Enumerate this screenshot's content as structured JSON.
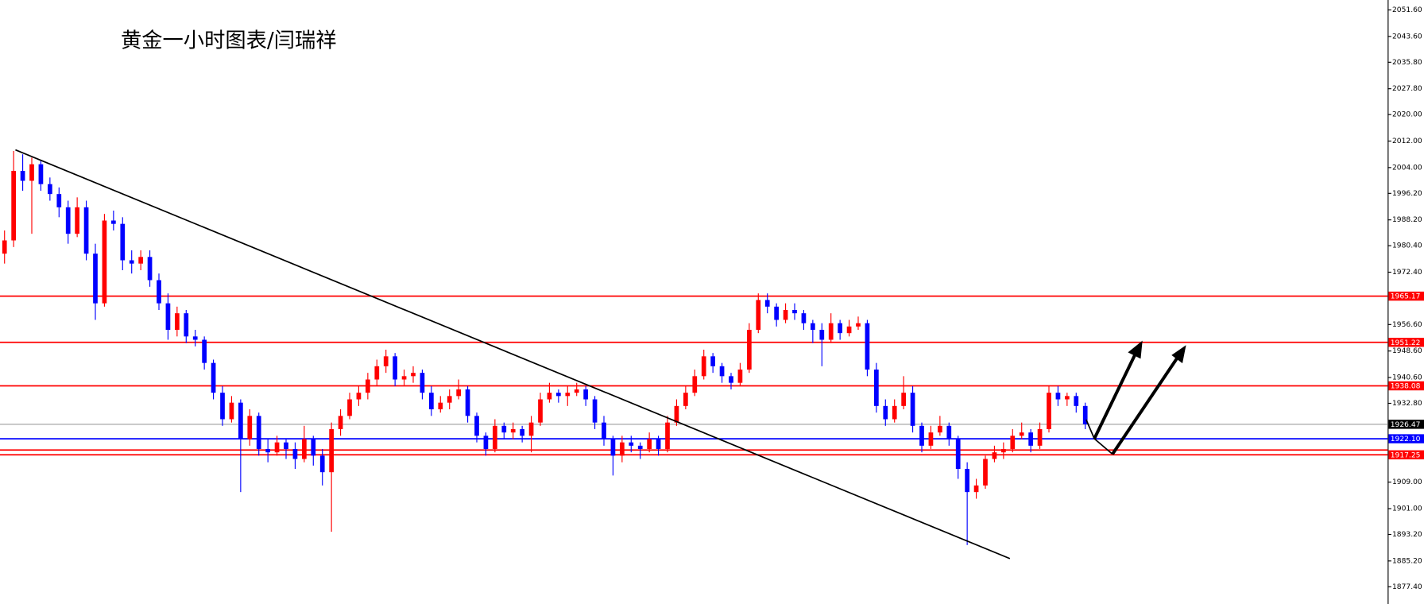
{
  "chart_data": {
    "type": "candlestick",
    "title": "黄金一小时图表/闫瑞祥",
    "ylim": [
      1872.2,
      2054.6
    ],
    "yticks": [
      {
        "value": 2051.6,
        "label": "2051.60"
      },
      {
        "value": 2043.6,
        "label": "2043.60"
      },
      {
        "value": 2035.8,
        "label": "2035.80"
      },
      {
        "value": 2027.8,
        "label": "2027.80"
      },
      {
        "value": 2020,
        "label": "2020.00"
      },
      {
        "value": 2012,
        "label": "2012.00"
      },
      {
        "value": 2004,
        "label": "2004.00"
      },
      {
        "value": 1996.2,
        "label": "1996.20"
      },
      {
        "value": 1988.2,
        "label": "1988.20"
      },
      {
        "value": 1980.4,
        "label": "1980.40"
      },
      {
        "value": 1972.4,
        "label": "1972.40"
      },
      {
        "value": 1956.6,
        "label": "1956.60"
      },
      {
        "value": 1948.6,
        "label": "1948.60"
      },
      {
        "value": 1940.6,
        "label": "1940.60"
      },
      {
        "value": 1932.8,
        "label": "1932.80"
      },
      {
        "value": 1909,
        "label": "1909.00"
      },
      {
        "value": 1901,
        "label": "1901.00"
      },
      {
        "value": 1893.2,
        "label": "1893.20"
      },
      {
        "value": 1885.2,
        "label": "1885.20"
      },
      {
        "value": 1877.4,
        "label": "1877.40"
      }
    ],
    "up_color": "#ff0000",
    "down_color": "#0000ff",
    "levels": [
      {
        "value": 1965.17,
        "color": "#ff0000"
      },
      {
        "value": 1951.22,
        "color": "#ff0000"
      },
      {
        "value": 1938.08,
        "color": "#ff0000"
      },
      {
        "value": 1926.47,
        "color": "#c0c0c0",
        "tag_color": "#000000"
      },
      {
        "value": 1922.1,
        "label": "1922.10",
        "color": "#0000ff"
      },
      {
        "value": 1918.7,
        "color": "#ff0000",
        "tagged": false
      },
      {
        "value": 1917.25,
        "color": "#ff0000"
      }
    ],
    "ohlc": [
      [
        1978,
        1985,
        1975,
        1982
      ],
      [
        1982,
        2009,
        1980,
        2003
      ],
      [
        2003,
        2008,
        1997,
        2000
      ],
      [
        2000,
        2007,
        1984,
        2005
      ],
      [
        2005,
        2006,
        1997,
        1999
      ],
      [
        1999,
        2001,
        1994,
        1996
      ],
      [
        1996,
        1998,
        1989,
        1992
      ],
      [
        1992,
        1994,
        1981,
        1984
      ],
      [
        1984,
        1995,
        1983,
        1992
      ],
      [
        1992,
        1994,
        1976,
        1978
      ],
      [
        1978,
        1981,
        1958,
        1963
      ],
      [
        1963,
        1990,
        1962,
        1988
      ],
      [
        1988,
        1991,
        1985,
        1987
      ],
      [
        1987,
        1989,
        1973,
        1976
      ],
      [
        1976,
        1979,
        1972,
        1975
      ],
      [
        1975,
        1979,
        1973,
        1977
      ],
      [
        1977,
        1979,
        1968,
        1970
      ],
      [
        1970,
        1972,
        1961,
        1963
      ],
      [
        1963,
        1966,
        1952,
        1955
      ],
      [
        1955,
        1962,
        1953,
        1960
      ],
      [
        1960,
        1961,
        1951,
        1953
      ],
      [
        1953,
        1955,
        1950,
        1952
      ],
      [
        1952,
        1953,
        1943,
        1945
      ],
      [
        1945,
        1946,
        1934,
        1936
      ],
      [
        1936,
        1938,
        1926,
        1928
      ],
      [
        1928,
        1935,
        1927,
        1933
      ],
      [
        1933,
        1934,
        1906,
        1922
      ],
      [
        1922,
        1931,
        1920,
        1929
      ],
      [
        1929,
        1930,
        1917,
        1919
      ],
      [
        1919,
        1922,
        1915,
        1918
      ],
      [
        1918,
        1923,
        1917,
        1921
      ],
      [
        1921,
        1922,
        1916,
        1919
      ],
      [
        1919,
        1921,
        1913,
        1916
      ],
      [
        1916,
        1926,
        1915,
        1922
      ],
      [
        1922,
        1923,
        1914,
        1917
      ],
      [
        1917,
        1919,
        1908,
        1912
      ],
      [
        1912,
        1927,
        1894,
        1925
      ],
      [
        1925,
        1931,
        1923,
        1929
      ],
      [
        1929,
        1936,
        1928,
        1934
      ],
      [
        1934,
        1938,
        1932,
        1936
      ],
      [
        1936,
        1942,
        1934,
        1940
      ],
      [
        1940,
        1946,
        1938,
        1944
      ],
      [
        1944,
        1949,
        1942,
        1947
      ],
      [
        1947,
        1948,
        1938,
        1940
      ],
      [
        1940,
        1943,
        1938,
        1941
      ],
      [
        1941,
        1944,
        1939,
        1942
      ],
      [
        1942,
        1943,
        1934,
        1936
      ],
      [
        1936,
        1938,
        1929,
        1931
      ],
      [
        1931,
        1935,
        1930,
        1933
      ],
      [
        1933,
        1937,
        1931,
        1935
      ],
      [
        1935,
        1940,
        1934,
        1937
      ],
      [
        1937,
        1938,
        1927,
        1929
      ],
      [
        1929,
        1930,
        1921,
        1923
      ],
      [
        1923,
        1924,
        1917,
        1919
      ],
      [
        1919,
        1928,
        1918,
        1926
      ],
      [
        1926,
        1927,
        1922,
        1924
      ],
      [
        1924,
        1927,
        1922,
        1925
      ],
      [
        1925,
        1926,
        1921,
        1923
      ],
      [
        1923,
        1929,
        1918,
        1927
      ],
      [
        1927,
        1936,
        1926,
        1934
      ],
      [
        1934,
        1939,
        1933,
        1936
      ],
      [
        1936,
        1937,
        1933,
        1935
      ],
      [
        1935,
        1938,
        1932,
        1936
      ],
      [
        1936,
        1939,
        1935,
        1937
      ],
      [
        1937,
        1938,
        1932,
        1934
      ],
      [
        1934,
        1935,
        1925,
        1927
      ],
      [
        1927,
        1929,
        1920,
        1922
      ],
      [
        1922,
        1923,
        1911,
        1917
      ],
      [
        1917,
        1923,
        1915,
        1921
      ],
      [
        1921,
        1923,
        1918,
        1920
      ],
      [
        1920,
        1921,
        1916,
        1919
      ],
      [
        1919,
        1924,
        1918,
        1922
      ],
      [
        1922,
        1923,
        1917,
        1919
      ],
      [
        1919,
        1929,
        1918,
        1927
      ],
      [
        1927,
        1934,
        1926,
        1932
      ],
      [
        1932,
        1938,
        1931,
        1936
      ],
      [
        1936,
        1943,
        1935,
        1941
      ],
      [
        1941,
        1949,
        1940,
        1947
      ],
      [
        1947,
        1948,
        1942,
        1944
      ],
      [
        1944,
        1945,
        1939,
        1941
      ],
      [
        1941,
        1942,
        1937,
        1939
      ],
      [
        1939,
        1945,
        1938,
        1943
      ],
      [
        1943,
        1957,
        1942,
        1955
      ],
      [
        1955,
        1966,
        1954,
        1964
      ],
      [
        1964,
        1966,
        1960,
        1962
      ],
      [
        1962,
        1963,
        1956,
        1958
      ],
      [
        1958,
        1963,
        1957,
        1961
      ],
      [
        1961,
        1963,
        1958,
        1960
      ],
      [
        1960,
        1961,
        1955,
        1957
      ],
      [
        1957,
        1958,
        1951,
        1955
      ],
      [
        1955,
        1957,
        1944,
        1952
      ],
      [
        1952,
        1960,
        1951,
        1957
      ],
      [
        1957,
        1958,
        1952,
        1954
      ],
      [
        1954,
        1958,
        1953,
        1956
      ],
      [
        1956,
        1959,
        1955,
        1957
      ],
      [
        1957,
        1958,
        1941,
        1943
      ],
      [
        1943,
        1945,
        1930,
        1932
      ],
      [
        1932,
        1934,
        1926,
        1928
      ],
      [
        1928,
        1934,
        1927,
        1932
      ],
      [
        1932,
        1941,
        1931,
        1936
      ],
      [
        1936,
        1938,
        1924,
        1926
      ],
      [
        1926,
        1927,
        1918,
        1920
      ],
      [
        1920,
        1926,
        1919,
        1924
      ],
      [
        1924,
        1929,
        1923,
        1926
      ],
      [
        1926,
        1927,
        1920,
        1922
      ],
      [
        1922,
        1923,
        1910,
        1913
      ],
      [
        1913,
        1915,
        1890,
        1906
      ],
      [
        1906,
        1910,
        1904,
        1908
      ],
      [
        1908,
        1917,
        1907,
        1916
      ],
      [
        1916,
        1920,
        1915,
        1918
      ],
      [
        1918,
        1921,
        1916,
        1919
      ],
      [
        1919,
        1925,
        1918,
        1923
      ],
      [
        1923,
        1927,
        1922,
        1924
      ],
      [
        1924,
        1925,
        1918,
        1920
      ],
      [
        1920,
        1927,
        1919,
        1925
      ],
      [
        1925,
        1938,
        1924,
        1936
      ],
      [
        1936,
        1938,
        1932,
        1934
      ],
      [
        1934,
        1936,
        1932,
        1935
      ],
      [
        1935,
        1936,
        1930,
        1932
      ],
      [
        1932,
        1933,
        1925,
        1926.47
      ]
    ]
  }
}
